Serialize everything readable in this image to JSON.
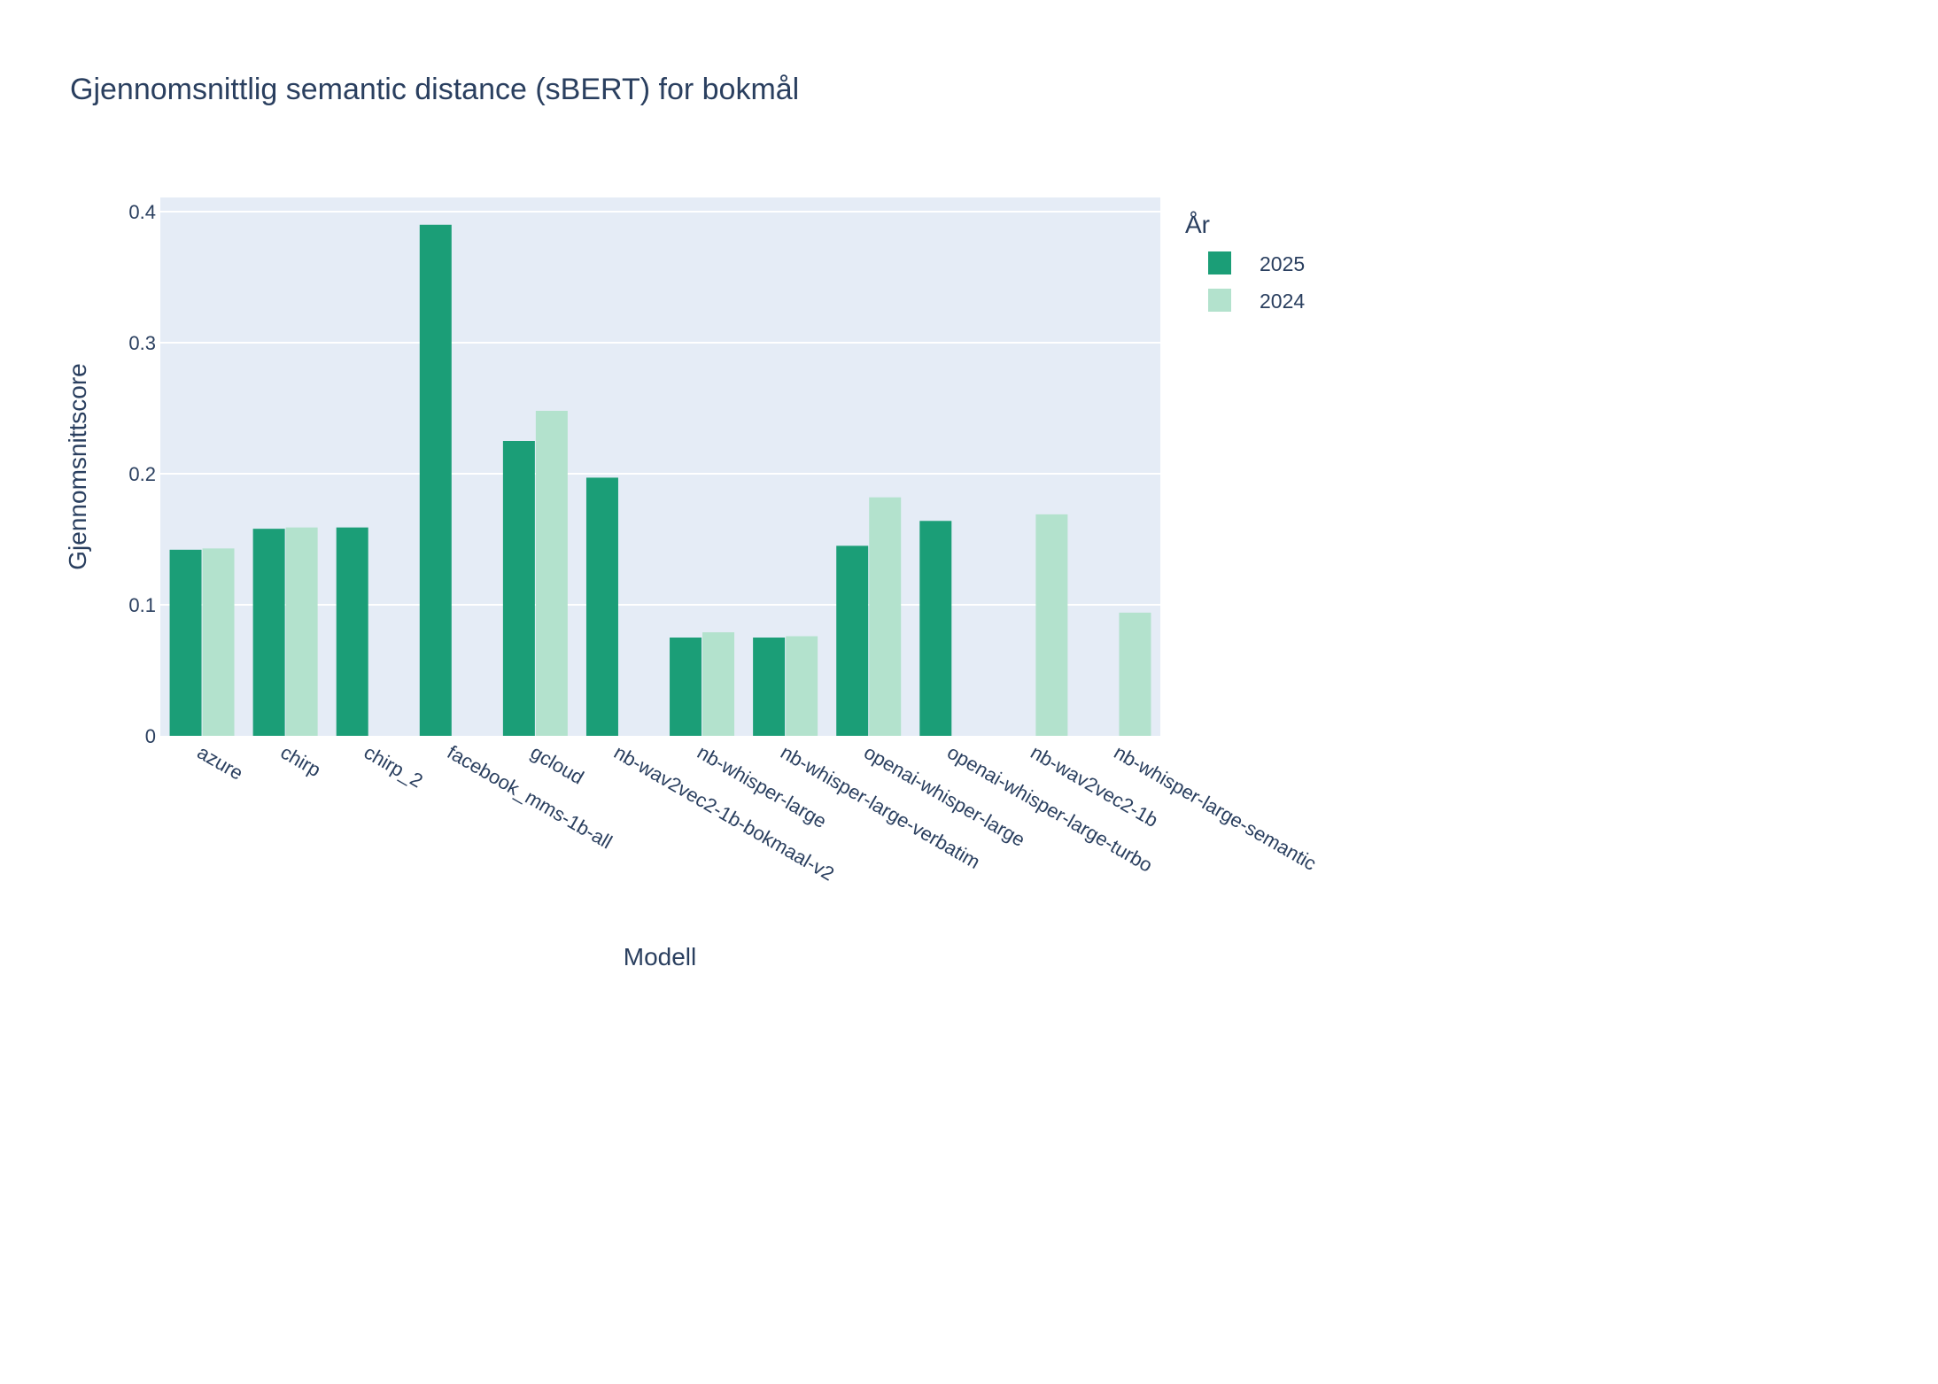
{
  "chart_data": {
    "type": "bar",
    "title": "Gjennomsnittlig semantic distance (sBERT) for bokmål",
    "xlabel": "Modell",
    "ylabel": "Gjennomsnittscore",
    "ylim": [
      0,
      0.41
    ],
    "yticks": [
      {
        "value": 0,
        "label": "0"
      },
      {
        "value": 0.1,
        "label": "0.1"
      },
      {
        "value": 0.2,
        "label": "0.2"
      },
      {
        "value": 0.3,
        "label": "0.3"
      },
      {
        "value": 0.4,
        "label": "0.4"
      }
    ],
    "grid": true,
    "legend_title": "År",
    "legend_position": "top-right",
    "categories": [
      "azure",
      "chirp",
      "chirp_2",
      "facebook_mms-1b-all",
      "gcloud",
      "nb-wav2vec2-1b-bokmaal-v2",
      "nb-whisper-large",
      "nb-whisper-large-verbatim",
      "openai-whisper-large",
      "openai-whisper-large-turbo",
      "nb-wav2vec2-1b",
      "nb-whisper-large-semantic"
    ],
    "series": [
      {
        "name": "2025",
        "color": "#1b9e77",
        "values": [
          0.142,
          0.158,
          0.159,
          0.39,
          0.225,
          0.197,
          0.075,
          0.075,
          0.145,
          0.164,
          null,
          null
        ]
      },
      {
        "name": "2024",
        "color": "#b3e2cd",
        "values": [
          0.143,
          0.159,
          null,
          null,
          0.248,
          null,
          0.079,
          0.076,
          0.182,
          null,
          0.169,
          0.094
        ]
      }
    ]
  }
}
